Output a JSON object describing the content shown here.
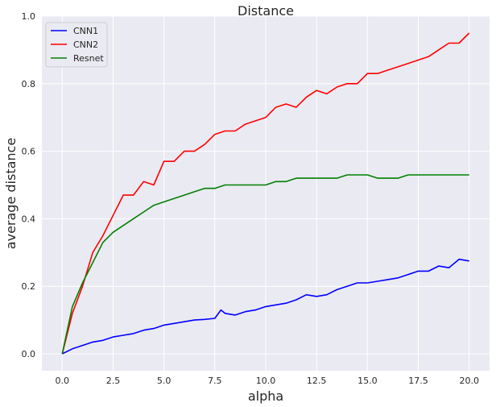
{
  "chart_data": {
    "type": "line",
    "title": "Distance",
    "xlabel": "alpha",
    "ylabel": "average distance",
    "xlim": [
      -1.0,
      21.0
    ],
    "ylim": [
      -0.05,
      1.0
    ],
    "xticks": [
      "0.0",
      "2.5",
      "5.0",
      "7.5",
      "10.0",
      "12.5",
      "15.0",
      "17.5",
      "20.0"
    ],
    "yticks": [
      "0.0",
      "0.2",
      "0.4",
      "0.6",
      "0.8",
      "1.0"
    ],
    "grid": true,
    "legend_position": "top-left",
    "colors": {
      "background": "#eaeaf2",
      "grid": "#ffffff"
    },
    "series": [
      {
        "name": "CNN1",
        "color": "#0000ff",
        "x": [
          0,
          0.5,
          1.0,
          1.5,
          2.0,
          2.5,
          3.0,
          3.5,
          4.0,
          4.5,
          5.0,
          5.5,
          6.0,
          6.5,
          7.0,
          7.5,
          7.8,
          8.0,
          8.5,
          9.0,
          9.5,
          10.0,
          10.5,
          11.0,
          11.5,
          12.0,
          12.5,
          13.0,
          13.5,
          14.0,
          14.5,
          15.0,
          15.5,
          16.0,
          16.5,
          17.0,
          17.5,
          18.0,
          18.5,
          19.0,
          19.5,
          20.0
        ],
        "y": [
          0.0,
          0.015,
          0.025,
          0.035,
          0.04,
          0.05,
          0.055,
          0.06,
          0.07,
          0.075,
          0.085,
          0.09,
          0.095,
          0.1,
          0.102,
          0.105,
          0.13,
          0.12,
          0.115,
          0.125,
          0.13,
          0.14,
          0.145,
          0.15,
          0.16,
          0.175,
          0.17,
          0.175,
          0.19,
          0.2,
          0.21,
          0.21,
          0.215,
          0.22,
          0.225,
          0.235,
          0.245,
          0.245,
          0.26,
          0.255,
          0.28,
          0.275
        ]
      },
      {
        "name": "CNN2",
        "color": "#ff0000",
        "x": [
          0,
          0.5,
          1.0,
          1.5,
          2.0,
          2.5,
          3.0,
          3.5,
          4.0,
          4.5,
          5.0,
          5.5,
          6.0,
          6.5,
          7.0,
          7.5,
          8.0,
          8.5,
          9.0,
          9.5,
          10.0,
          10.5,
          11.0,
          11.5,
          12.0,
          12.5,
          13.0,
          13.5,
          14.0,
          14.5,
          15.0,
          15.5,
          16.0,
          16.5,
          17.0,
          17.5,
          18.0,
          18.5,
          19.0,
          19.5,
          20.0
        ],
        "y": [
          0.0,
          0.12,
          0.2,
          0.3,
          0.35,
          0.41,
          0.47,
          0.47,
          0.51,
          0.5,
          0.57,
          0.57,
          0.6,
          0.6,
          0.62,
          0.65,
          0.66,
          0.66,
          0.68,
          0.69,
          0.7,
          0.73,
          0.74,
          0.73,
          0.76,
          0.78,
          0.77,
          0.79,
          0.8,
          0.8,
          0.83,
          0.83,
          0.84,
          0.85,
          0.86,
          0.87,
          0.88,
          0.9,
          0.92,
          0.92,
          0.95
        ]
      },
      {
        "name": "Resnet",
        "color": "#008000",
        "x": [
          0,
          0.5,
          1.0,
          1.5,
          2.0,
          2.5,
          3.0,
          3.5,
          4.0,
          4.5,
          5.0,
          5.5,
          6.0,
          6.5,
          7.0,
          7.5,
          8.0,
          8.5,
          9.0,
          9.5,
          10.0,
          10.5,
          11.0,
          11.5,
          12.0,
          12.5,
          13.0,
          13.5,
          14.0,
          14.5,
          15.0,
          15.5,
          16.0,
          16.5,
          17.0,
          17.5,
          18.0,
          18.5,
          19.0,
          19.5,
          20.0
        ],
        "y": [
          0.0,
          0.14,
          0.21,
          0.27,
          0.33,
          0.36,
          0.38,
          0.4,
          0.42,
          0.44,
          0.45,
          0.46,
          0.47,
          0.48,
          0.49,
          0.49,
          0.5,
          0.5,
          0.5,
          0.5,
          0.5,
          0.51,
          0.51,
          0.52,
          0.52,
          0.52,
          0.52,
          0.52,
          0.53,
          0.53,
          0.53,
          0.52,
          0.52,
          0.52,
          0.53,
          0.53,
          0.53,
          0.53,
          0.53,
          0.53,
          0.53
        ]
      }
    ]
  }
}
